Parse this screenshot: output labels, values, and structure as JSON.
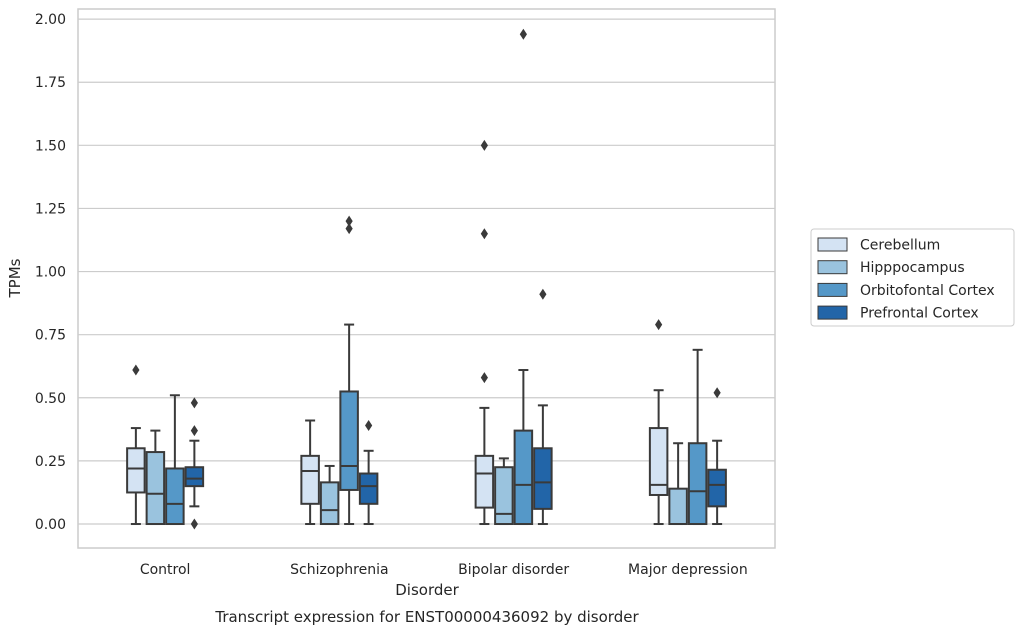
{
  "chart_data": {
    "type": "boxplot",
    "caption": "Transcript expression for ENST00000436092 by disorder",
    "xlabel": "Disorder",
    "ylabel": "TPMs",
    "ylim": [
      -0.095,
      2.04
    ],
    "yticks": [
      "0.00",
      "0.25",
      "0.50",
      "0.75",
      "1.00",
      "1.25",
      "1.50",
      "1.75",
      "2.00"
    ],
    "ytick_values": [
      0,
      0.25,
      0.5,
      0.75,
      1.0,
      1.25,
      1.5,
      1.75,
      2.0
    ],
    "grid": "horizontal",
    "legend_placement": "right",
    "categories": [
      "Control",
      "Schizophrenia",
      "Bipolar disorder",
      "Major depression"
    ],
    "series": [
      {
        "name": "Cerebellum",
        "color": "#d4e3f3",
        "boxes": [
          {
            "whislo": 0.0,
            "q1": 0.125,
            "med": 0.22,
            "q3": 0.3,
            "whishi": 0.38,
            "fliers": [
              0.61
            ]
          },
          {
            "whislo": 0.0,
            "q1": 0.08,
            "med": 0.21,
            "q3": 0.27,
            "whishi": 0.41,
            "fliers": []
          },
          {
            "whislo": 0.0,
            "q1": 0.065,
            "med": 0.2,
            "q3": 0.27,
            "whishi": 0.46,
            "fliers": [
              1.5,
              1.15,
              0.58
            ]
          },
          {
            "whislo": 0.0,
            "q1": 0.115,
            "med": 0.155,
            "q3": 0.38,
            "whishi": 0.53,
            "fliers": [
              0.79
            ]
          }
        ]
      },
      {
        "name": "Hipppocampus",
        "color": "#9ac3de",
        "boxes": [
          {
            "whislo": 0.0,
            "q1": 0.0,
            "med": 0.12,
            "q3": 0.285,
            "whishi": 0.37,
            "fliers": []
          },
          {
            "whislo": 0.0,
            "q1": 0.0,
            "med": 0.055,
            "q3": 0.165,
            "whishi": 0.23,
            "fliers": []
          },
          {
            "whislo": 0.0,
            "q1": 0.0,
            "med": 0.04,
            "q3": 0.225,
            "whishi": 0.26,
            "fliers": []
          },
          {
            "whislo": 0.0,
            "q1": 0.0,
            "med": 0.0,
            "q3": 0.14,
            "whishi": 0.32,
            "fliers": []
          }
        ]
      },
      {
        "name": "Orbitofontal Cortex",
        "color": "#5598c8",
        "boxes": [
          {
            "whislo": 0.0,
            "q1": 0.0,
            "med": 0.08,
            "q3": 0.22,
            "whishi": 0.51,
            "fliers": []
          },
          {
            "whislo": 0.0,
            "q1": 0.135,
            "med": 0.23,
            "q3": 0.525,
            "whishi": 0.79,
            "fliers": [
              1.2,
              1.17
            ]
          },
          {
            "whislo": 0.0,
            "q1": 0.0,
            "med": 0.155,
            "q3": 0.37,
            "whishi": 0.61,
            "fliers": [
              1.94
            ]
          },
          {
            "whislo": 0.0,
            "q1": 0.0,
            "med": 0.13,
            "q3": 0.32,
            "whishi": 0.69,
            "fliers": []
          }
        ]
      },
      {
        "name": "Prefrontal Cortex",
        "color": "#2265a8",
        "boxes": [
          {
            "whislo": 0.07,
            "q1": 0.15,
            "med": 0.18,
            "q3": 0.225,
            "whishi": 0.33,
            "fliers": [
              0.48,
              0.37,
              0.0
            ]
          },
          {
            "whislo": 0.0,
            "q1": 0.08,
            "med": 0.15,
            "q3": 0.2,
            "whishi": 0.29,
            "fliers": [
              0.39
            ]
          },
          {
            "whislo": 0.0,
            "q1": 0.06,
            "med": 0.165,
            "q3": 0.3,
            "whishi": 0.47,
            "fliers": [
              0.91
            ]
          },
          {
            "whislo": 0.0,
            "q1": 0.07,
            "med": 0.155,
            "q3": 0.215,
            "whishi": 0.33,
            "fliers": [
              0.52
            ]
          }
        ]
      }
    ]
  }
}
